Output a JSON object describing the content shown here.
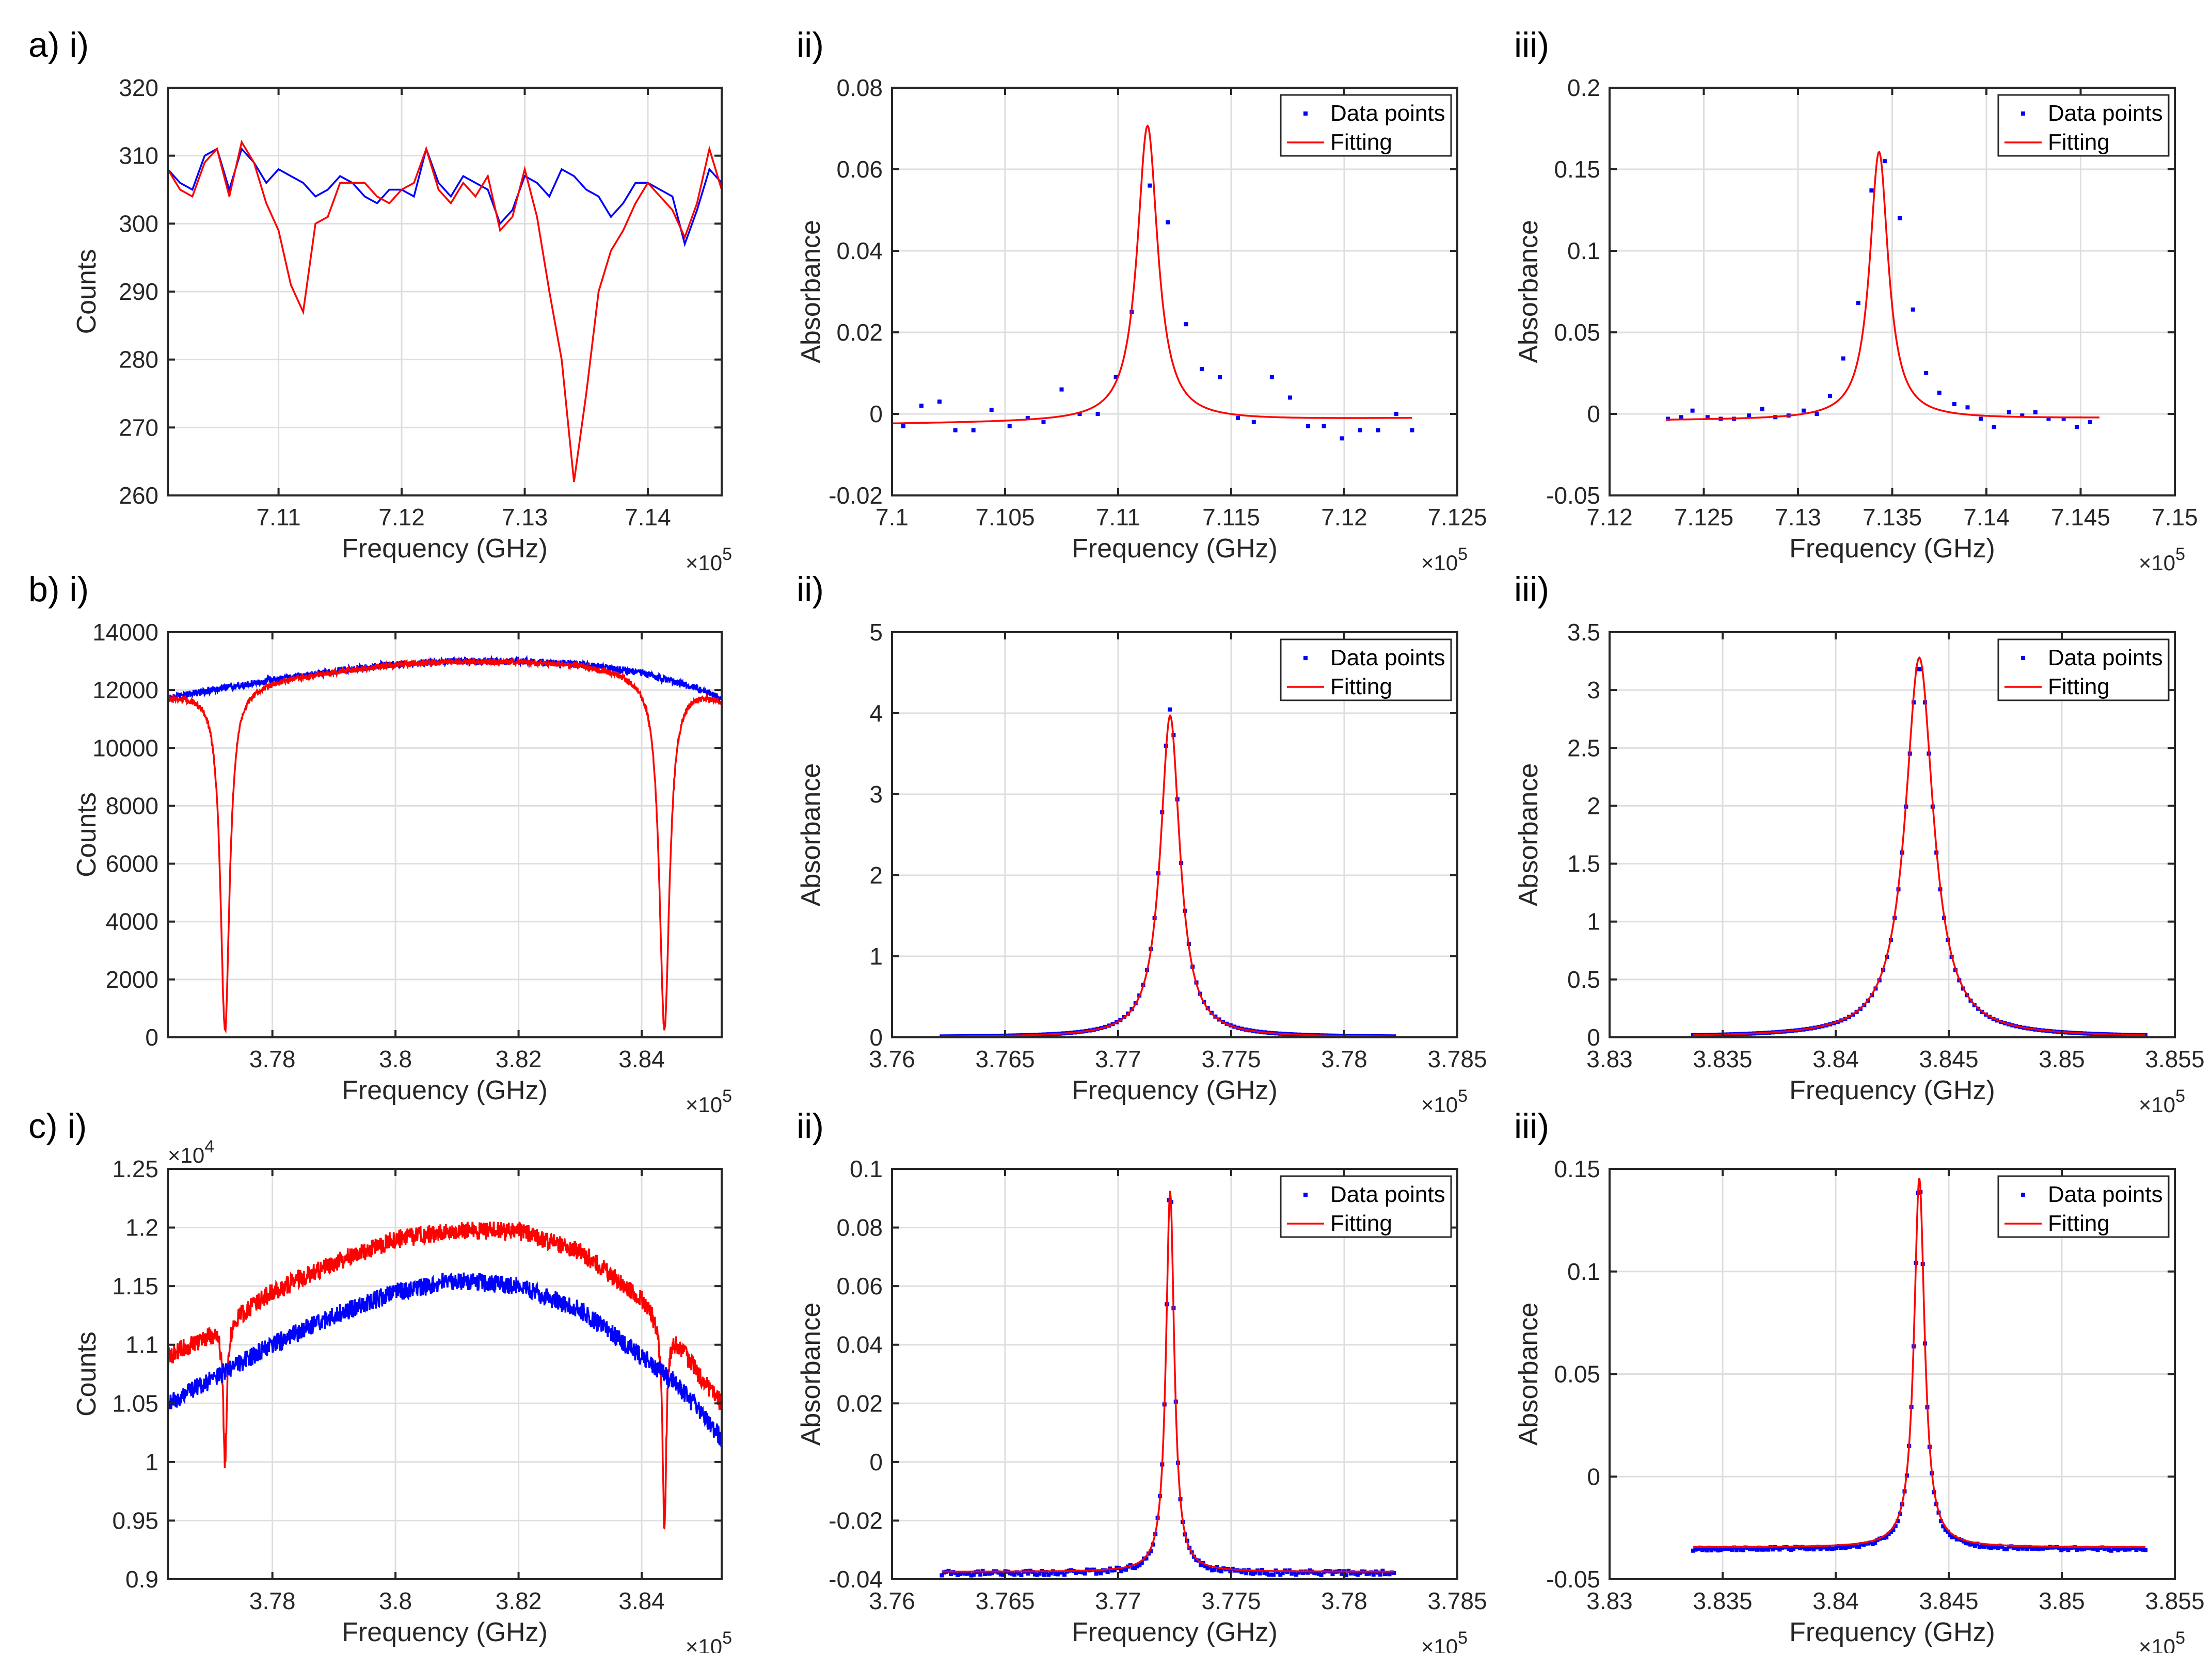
{
  "legend_labels": {
    "points": "Data points",
    "fit": "Fitting"
  },
  "colors": {
    "blue": "#0000ff",
    "red": "#ff0000"
  },
  "chart_data": [
    {
      "id": "a-i",
      "type": "line",
      "panel_label": "a) i)",
      "xlabel": "Frequency (GHz)",
      "ylabel": "Counts",
      "xlim": [
        710100,
        714600
      ],
      "ylim": [
        260,
        320
      ],
      "xticks": [
        711000,
        712000,
        713000,
        714000
      ],
      "xtick_labels": [
        "7.11",
        "7.12",
        "7.13",
        "7.14"
      ],
      "x_exponent": "×10^5",
      "yticks": [
        260,
        270,
        280,
        290,
        300,
        310,
        320
      ],
      "ytick_labels": [
        "260",
        "270",
        "280",
        "290",
        "300",
        "310",
        "320"
      ],
      "y_exponent": "",
      "legend": false,
      "series": [
        {
          "color": "blue",
          "x": [
            710100,
            710200,
            710300,
            710400,
            710500,
            710600,
            710700,
            710800,
            710900,
            711000,
            711100,
            711200,
            711300,
            711400,
            711500,
            711600,
            711700,
            711800,
            711900,
            712000,
            712100,
            712200,
            712300,
            712400,
            712500,
            712600,
            712700,
            712800,
            712900,
            713000,
            713100,
            713200,
            713300,
            713400,
            713500,
            713600,
            713700,
            713800,
            713900,
            714000,
            714100,
            714200,
            714300,
            714400,
            714500,
            714600
          ],
          "y": [
            308,
            306,
            305,
            310,
            311,
            305,
            311,
            309,
            306,
            308,
            307,
            306,
            304,
            305,
            307,
            306,
            304,
            303,
            305,
            305,
            304,
            311,
            306,
            304,
            307,
            306,
            305,
            300,
            302,
            307,
            306,
            304,
            308,
            307,
            305,
            304,
            301,
            303,
            306,
            306,
            305,
            304,
            297,
            302,
            308,
            306
          ]
        },
        {
          "color": "red",
          "x": [
            710100,
            710200,
            710300,
            710400,
            710500,
            710600,
            710700,
            710800,
            710900,
            711000,
            711100,
            711200,
            711300,
            711400,
            711500,
            711600,
            711700,
            711800,
            711900,
            712000,
            712100,
            712200,
            712300,
            712400,
            712500,
            712600,
            712700,
            712800,
            712900,
            713000,
            713100,
            713200,
            713300,
            713400,
            713500,
            713600,
            713700,
            713800,
            713900,
            714000,
            714100,
            714200,
            714300,
            714400,
            714500,
            714600
          ],
          "y": [
            308,
            305,
            304,
            309,
            311,
            304,
            312,
            309,
            303,
            299,
            291,
            287,
            300,
            301,
            306,
            306,
            306,
            304,
            303,
            305,
            306,
            311,
            305,
            303,
            306,
            304,
            307,
            299,
            301,
            308,
            301,
            290,
            280,
            262,
            275,
            290,
            296,
            299,
            303,
            306,
            304,
            302,
            298,
            303,
            311,
            305
          ]
        }
      ]
    },
    {
      "id": "a-ii",
      "type": "scatter",
      "panel_label": "ii)",
      "xlabel": "Frequency (GHz)",
      "ylabel": "Absorbance",
      "xlim": [
        710000,
        712500
      ],
      "ylim": [
        -0.02,
        0.08
      ],
      "xticks": [
        710000,
        710500,
        711000,
        711500,
        712000,
        712500
      ],
      "xtick_labels": [
        "7.1",
        "7.105",
        "7.11",
        "7.115",
        "7.12",
        "7.125"
      ],
      "x_exponent": "×10^5",
      "yticks": [
        -0.02,
        0,
        0.02,
        0.04,
        0.06,
        0.08
      ],
      "ytick_labels": [
        "-0.02",
        "0",
        "0.02",
        "0.04",
        "0.06",
        "0.08"
      ],
      "y_exponent": "",
      "legend": true,
      "points": {
        "x": [
          710050,
          710130,
          710210,
          710280,
          710360,
          710440,
          710520,
          710600,
          710670,
          710750,
          710830,
          710910,
          710990,
          711060,
          711140,
          711220,
          711300,
          711370,
          711450,
          711530,
          711600,
          711680,
          711760,
          711840,
          711910,
          711990,
          712070,
          712150,
          712230,
          712300
        ],
        "y": [
          -0.003,
          0.002,
          0.003,
          -0.004,
          -0.004,
          0.001,
          -0.003,
          -0.001,
          -0.002,
          0.006,
          0.0,
          0.0,
          0.009,
          0.025,
          0.056,
          0.047,
          0.022,
          0.011,
          0.009,
          -0.001,
          -0.002,
          0.009,
          0.004,
          -0.003,
          -0.003,
          -0.006,
          -0.004,
          -0.004,
          0.0,
          -0.004
        ]
      },
      "fit": {
        "center": 711130,
        "hwhm": 55,
        "amplitude": 0.0725,
        "baseline": -0.0025,
        "baseline_slope": 6e-07,
        "x_range": [
          710000,
          712300
        ]
      }
    },
    {
      "id": "a-iii",
      "type": "scatter",
      "panel_label": "iii)",
      "xlabel": "Frequency (GHz)",
      "ylabel": "Absorbance",
      "xlim": [
        712000,
        715000
      ],
      "ylim": [
        -0.05,
        0.2
      ],
      "xticks": [
        712000,
        712500,
        713000,
        713500,
        714000,
        714500,
        715000
      ],
      "xtick_labels": [
        "7.12",
        "7.125",
        "7.13",
        "7.135",
        "7.14",
        "7.145",
        "7.15"
      ],
      "x_exponent": "×10^5",
      "yticks": [
        -0.05,
        0,
        0.05,
        0.1,
        0.15,
        0.2
      ],
      "ytick_labels": [
        "-0.05",
        "0",
        "0.05",
        "0.1",
        "0.15",
        "0.2"
      ],
      "y_exponent": "",
      "legend": true,
      "points": {
        "x": [
          712310,
          712380,
          712440,
          712520,
          712590,
          712660,
          712740,
          712810,
          712880,
          712950,
          713030,
          713100,
          713170,
          713240,
          713320,
          713390,
          713460,
          713540,
          713610,
          713680,
          713750,
          713830,
          713900,
          713970,
          714040,
          714120,
          714190,
          714260,
          714330,
          714410,
          714480,
          714550
        ],
        "y": [
          -0.003,
          -0.002,
          0.002,
          -0.002,
          -0.003,
          -0.003,
          -0.001,
          0.003,
          -0.002,
          -0.001,
          0.002,
          0.0,
          0.011,
          0.034,
          0.068,
          0.137,
          0.155,
          0.12,
          0.064,
          0.025,
          0.013,
          0.006,
          0.004,
          -0.003,
          -0.008,
          0.001,
          -0.001,
          0.001,
          -0.003,
          -0.003,
          -0.008,
          -0.005
        ]
      },
      "fit": {
        "center": 713430,
        "hwhm": 60,
        "amplitude": 0.164,
        "baseline": -0.004,
        "baseline_slope": 6e-07,
        "x_range": [
          712300,
          714600
        ]
      }
    },
    {
      "id": "b-i",
      "type": "line",
      "panel_label": "b) i)",
      "xlabel": "Frequency (GHz)",
      "ylabel": "Counts",
      "xlim": [
        376300,
        385300
      ],
      "ylim": [
        0,
        14000
      ],
      "xticks": [
        378000,
        380000,
        382000,
        384000
      ],
      "xtick_labels": [
        "3.78",
        "3.8",
        "3.82",
        "3.84"
      ],
      "x_exponent": "×10^5",
      "yticks": [
        0,
        2000,
        4000,
        6000,
        8000,
        10000,
        12000,
        14000
      ],
      "ytick_labels": [
        "0",
        "2000",
        "4000",
        "6000",
        "8000",
        "10000",
        "12000",
        "14000"
      ],
      "y_exponent": "",
      "legend": false,
      "series": [
        {
          "color": "blue",
          "envelope": {
            "x": [
              376300,
              377000,
              378000,
              379000,
              380000,
              381000,
              382000,
              383000,
              384000,
              385000,
              385300
            ],
            "y": [
              11700,
              12000,
              12350,
              12650,
              12900,
              13000,
              13000,
              12900,
              12600,
              12000,
              11700
            ]
          },
          "noise": 120
        },
        {
          "color": "red",
          "envelope": {
            "x": [
              376300,
              377000,
              378000,
              379000,
              380000,
              381000,
              382000,
              383000,
              384000,
              385000,
              385300
            ],
            "y": [
              11800,
              12000,
              12350,
              12650,
              12900,
              13000,
              13000,
              12900,
              12600,
              12000,
              11700
            ]
          },
          "noise": 100,
          "dips": [
            {
              "center": 377230,
              "hwhm": 90,
              "depth": 11850
            },
            {
              "center": 384370,
              "hwhm": 100,
              "depth": 12100
            }
          ]
        }
      ]
    },
    {
      "id": "b-ii",
      "type": "scatter",
      "panel_label": "ii)",
      "xlabel": "Frequency (GHz)",
      "ylabel": "Absorbance",
      "xlim": [
        376000,
        378500
      ],
      "ylim": [
        0,
        5
      ],
      "xticks": [
        376000,
        376500,
        377000,
        377500,
        378000,
        378500
      ],
      "xtick_labels": [
        "3.76",
        "3.765",
        "3.77",
        "3.775",
        "3.78",
        "3.785"
      ],
      "x_exponent": "×10^5",
      "yticks": [
        0,
        1,
        2,
        3,
        4,
        5
      ],
      "ytick_labels": [
        "0",
        "1",
        "2",
        "3",
        "4",
        "5"
      ],
      "y_exponent": "",
      "legend": true,
      "points_model": {
        "center": 377230,
        "hwhm": 52,
        "amplitude": 4.05,
        "baseline": 0,
        "x_range": [
          376220,
          378220
        ],
        "count": 120
      },
      "fit": {
        "center": 377230,
        "hwhm": 52,
        "amplitude": 3.97,
        "baseline": 0,
        "baseline_slope": 0,
        "x_range": [
          376220,
          378220
        ]
      }
    },
    {
      "id": "b-iii",
      "type": "scatter",
      "panel_label": "iii)",
      "xlabel": "Frequency (GHz)",
      "ylabel": "Absorbance",
      "xlim": [
        383000,
        385500
      ],
      "ylim": [
        0,
        3.5
      ],
      "xticks": [
        383000,
        383500,
        384000,
        384500,
        385000,
        385500
      ],
      "xtick_labels": [
        "3.83",
        "3.835",
        "3.84",
        "3.845",
        "3.85",
        "3.855"
      ],
      "x_exponent": "×10^5",
      "yticks": [
        0,
        0.5,
        1,
        1.5,
        2,
        2.5,
        3,
        3.5
      ],
      "ytick_labels": [
        "0",
        "0.5",
        "1",
        "1.5",
        "2",
        "2.5",
        "3",
        "3.5"
      ],
      "y_exponent": "",
      "legend": true,
      "points_model": {
        "center": 384370,
        "hwhm": 75,
        "amplitude": 3.22,
        "baseline": 0,
        "x_range": [
          383370,
          385370
        ],
        "count": 120
      },
      "fit": {
        "center": 384370,
        "hwhm": 75,
        "amplitude": 3.28,
        "baseline": 0,
        "baseline_slope": 0,
        "x_range": [
          383370,
          385370
        ]
      }
    },
    {
      "id": "c-i",
      "type": "line",
      "panel_label": "c) i)",
      "xlabel": "Frequency (GHz)",
      "ylabel": "Counts",
      "xlim": [
        376300,
        385300
      ],
      "ylim": [
        0.9,
        1.25
      ],
      "xticks": [
        378000,
        380000,
        382000,
        384000
      ],
      "xtick_labels": [
        "3.78",
        "3.8",
        "3.82",
        "3.84"
      ],
      "x_exponent": "×10^5",
      "yticks": [
        0.9,
        0.95,
        1,
        1.05,
        1.1,
        1.15,
        1.2,
        1.25
      ],
      "ytick_labels": [
        "0.9",
        "0.95",
        "1",
        "1.05",
        "1.1",
        "1.15",
        "1.2",
        "1.25"
      ],
      "y_exponent": "×10^4",
      "legend": false,
      "series": [
        {
          "color": "red",
          "envelope": {
            "x": [
              376300,
              377000,
              378000,
              379000,
              380000,
              381000,
              382000,
              383000,
              384000,
              384500,
              385000,
              385300
            ],
            "y": [
              1.09,
              1.11,
              1.145,
              1.17,
              1.19,
              1.198,
              1.197,
              1.18,
              1.14,
              1.11,
              1.07,
              1.05
            ]
          },
          "noise": 0.008,
          "dips": [
            {
              "center": 377230,
              "hwhm": 35,
              "depth": 0.12
            },
            {
              "center": 384370,
              "hwhm": 35,
              "depth": 0.18
            }
          ]
        },
        {
          "color": "blue",
          "envelope": {
            "x": [
              376300,
              377000,
              378000,
              379000,
              380000,
              381000,
              382000,
              383000,
              384000,
              384500,
              385000,
              385300
            ],
            "y": [
              1.05,
              1.07,
              1.1,
              1.125,
              1.145,
              1.155,
              1.15,
              1.13,
              1.09,
              1.07,
              1.04,
              1.02
            ]
          },
          "noise": 0.008
        }
      ]
    },
    {
      "id": "c-ii",
      "type": "scatter",
      "panel_label": "ii)",
      "xlabel": "Frequency (GHz)",
      "ylabel": "Absorbance",
      "xlim": [
        376000,
        378500
      ],
      "ylim": [
        -0.04,
        0.1
      ],
      "xticks": [
        376000,
        376500,
        377000,
        377500,
        378000,
        378500
      ],
      "xtick_labels": [
        "3.76",
        "3.765",
        "3.77",
        "3.775",
        "3.78",
        "3.785"
      ],
      "x_exponent": "×10^5",
      "yticks": [
        -0.04,
        -0.02,
        0,
        0.02,
        0.04,
        0.06,
        0.08,
        0.1
      ],
      "ytick_labels": [
        "-0.04",
        "-0.02",
        "0",
        "0.02",
        "0.04",
        "0.06",
        "0.08",
        "0.1"
      ],
      "y_exponent": "",
      "legend": true,
      "points_model": {
        "center": 377230,
        "hwhm": 22,
        "amplitude": 0.134,
        "baseline": -0.038,
        "x_range": [
          376220,
          378220
        ],
        "count": 200,
        "noise": 0.0008
      },
      "fit": {
        "center": 377230,
        "hwhm": 22,
        "amplitude": 0.13,
        "baseline": -0.0375,
        "baseline_slope": 0,
        "x_range": [
          376220,
          378220
        ]
      }
    },
    {
      "id": "c-iii",
      "type": "scatter",
      "panel_label": "iii)",
      "xlabel": "Frequency (GHz)",
      "ylabel": "Absorbance",
      "xlim": [
        383000,
        385500
      ],
      "ylim": [
        -0.05,
        0.15
      ],
      "xticks": [
        383000,
        383500,
        384000,
        384500,
        385000,
        385500
      ],
      "xtick_labels": [
        "3.83",
        "3.835",
        "3.84",
        "3.845",
        "3.85",
        "3.855"
      ],
      "x_exponent": "×10^5",
      "yticks": [
        -0.05,
        0,
        0.05,
        0.1,
        0.15
      ],
      "ytick_labels": [
        "-0.05",
        "0",
        "0.05",
        "0.1",
        "0.15"
      ],
      "y_exponent": "",
      "legend": true,
      "points_model": {
        "center": 384370,
        "hwhm": 28,
        "amplitude": 0.18,
        "baseline": -0.0355,
        "x_range": [
          383370,
          385370
        ],
        "count": 200,
        "noise": 0.0008
      },
      "fit": {
        "center": 384370,
        "hwhm": 28,
        "amplitude": 0.18,
        "baseline": -0.0345,
        "baseline_slope": 0,
        "x_range": [
          383370,
          385370
        ]
      }
    }
  ]
}
